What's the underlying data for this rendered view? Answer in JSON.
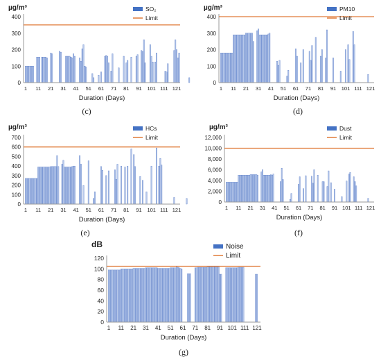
{
  "figure": {
    "captions": [
      "(c)",
      "(d)",
      "(e)",
      "(f)",
      "(g)"
    ]
  },
  "style": {
    "bar_fill": "#b8c9ea",
    "bar_edge": "#4f74c4",
    "legend_bar": "#4472c4",
    "limit_color": "#e07b39",
    "axis_color": "#9a9a9a"
  },
  "chart_data": [
    {
      "id": "c",
      "type": "bar",
      "ylabel": "µg/m³",
      "xlabel": "Duration (Days)",
      "ylim": [
        0,
        400
      ],
      "yticks": [
        0,
        100,
        200,
        300,
        400
      ],
      "xticks": [
        1,
        11,
        21,
        31,
        41,
        51,
        61,
        71,
        81,
        91,
        101,
        111,
        121
      ],
      "limit": 350,
      "series": [
        {
          "name": "SO₂",
          "values": [
            100,
            100,
            100,
            100,
            100,
            100,
            100,
            0,
            0,
            155,
            155,
            155,
            0,
            155,
            155,
            155,
            155,
            150,
            0,
            0,
            180,
            175,
            0,
            0,
            0,
            0,
            0,
            190,
            185,
            0,
            0,
            0,
            160,
            160,
            160,
            160,
            155,
            150,
            175,
            160,
            0,
            0,
            0,
            150,
            130,
            205,
            230,
            100,
            95,
            0,
            0,
            0,
            0,
            55,
            30,
            0,
            0,
            0,
            45,
            0,
            65,
            0,
            0,
            160,
            165,
            160,
            120,
            0,
            70,
            175,
            0,
            0,
            0,
            0,
            90,
            0,
            0,
            0,
            160,
            0,
            120,
            135,
            0,
            0,
            155,
            0,
            0,
            0,
            160,
            170,
            0,
            0,
            195,
            190,
            260,
            120,
            0,
            0,
            0,
            230,
            160,
            125,
            0,
            125,
            180,
            0,
            0,
            0,
            0,
            0,
            0,
            70,
            65,
            115,
            0,
            0,
            0,
            0,
            195,
            260,
            200,
            150,
            180,
            0,
            0,
            0,
            0,
            0,
            0,
            0,
            30
          ]
        },
        {
          "name": "Limit"
        }
      ]
    },
    {
      "id": "d",
      "type": "bar",
      "ylabel": "µg/m³",
      "xlabel": "Duration (Days)",
      "ylim": [
        0,
        400
      ],
      "yticks": [
        0,
        100,
        200,
        300,
        400
      ],
      "xticks": [
        1,
        11,
        21,
        31,
        41,
        51,
        61,
        71,
        81,
        91,
        101,
        111,
        121
      ],
      "limit": 400,
      "series": [
        {
          "name": "PM10",
          "values": [
            180,
            180,
            180,
            180,
            180,
            180,
            180,
            180,
            180,
            180,
            290,
            290,
            290,
            290,
            290,
            290,
            290,
            290,
            290,
            290,
            300,
            300,
            300,
            300,
            300,
            300,
            250,
            0,
            0,
            315,
            325,
            290,
            290,
            290,
            290,
            290,
            290,
            290,
            295,
            300,
            0,
            0,
            0,
            0,
            0,
            130,
            105,
            135,
            0,
            0,
            0,
            0,
            0,
            40,
            75,
            0,
            0,
            0,
            0,
            0,
            205,
            160,
            0,
            0,
            120,
            0,
            200,
            0,
            0,
            0,
            0,
            190,
            135,
            225,
            0,
            0,
            275,
            0,
            0,
            0,
            160,
            200,
            0,
            0,
            150,
            320,
            0,
            0,
            0,
            0,
            150,
            0,
            0,
            0,
            0,
            0,
            70,
            0,
            0,
            0,
            200,
            0,
            230,
            140,
            0,
            0,
            310,
            230,
            0,
            0,
            0,
            0,
            0,
            0,
            0,
            0,
            0,
            0,
            50,
            0,
            0,
            0,
            0,
            0,
            0,
            0,
            0,
            0
          ]
        },
        {
          "name": "Limit"
        }
      ]
    },
    {
      "id": "e",
      "type": "bar",
      "ylabel": "µg/m³",
      "xlabel": "Duration (Days)",
      "ylim": [
        0,
        700
      ],
      "yticks": [
        0,
        100,
        200,
        300,
        400,
        500,
        600,
        700
      ],
      "xticks": [
        1,
        11,
        21,
        31,
        41,
        51,
        61,
        71,
        81,
        91,
        101,
        111,
        121
      ],
      "limit": 600,
      "series": [
        {
          "name": "HCs",
          "values": [
            270,
            270,
            270,
            270,
            270,
            270,
            270,
            270,
            270,
            270,
            390,
            390,
            390,
            390,
            390,
            390,
            390,
            390,
            390,
            390,
            395,
            395,
            395,
            395,
            395,
            510,
            395,
            0,
            0,
            420,
            460,
            390,
            390,
            390,
            390,
            390,
            390,
            395,
            400,
            400,
            0,
            0,
            0,
            510,
            420,
            0,
            195,
            0,
            0,
            0,
            455,
            0,
            0,
            0,
            60,
            130,
            0,
            0,
            0,
            0,
            395,
            355,
            0,
            0,
            300,
            0,
            350,
            0,
            0,
            0,
            0,
            360,
            260,
            420,
            0,
            0,
            400,
            0,
            0,
            390,
            0,
            400,
            0,
            0,
            580,
            0,
            520,
            395,
            0,
            0,
            0,
            290,
            0,
            250,
            0,
            0,
            130,
            0,
            0,
            0,
            400,
            0,
            0,
            0,
            590,
            0,
            400,
            480,
            410,
            0,
            0,
            0,
            0,
            0,
            0,
            0,
            0,
            0,
            70,
            0,
            0,
            0,
            0,
            0,
            0,
            0,
            0,
            0,
            60
          ]
        },
        {
          "name": "Limit"
        }
      ]
    },
    {
      "id": "f",
      "type": "bar",
      "ylabel": "µg/m³",
      "xlabel": "Duration (Days)",
      "ylim": [
        0,
        12000
      ],
      "yticks": [
        0,
        2000,
        4000,
        6000,
        8000,
        10000,
        12000
      ],
      "ytick_labels": [
        "0",
        "2,000",
        "4,000",
        "6,000",
        "8,000",
        "10,000",
        "12,000"
      ],
      "xticks": [
        1,
        11,
        21,
        31,
        41,
        51,
        61,
        71,
        81,
        91,
        101,
        111,
        121
      ],
      "limit": 10000,
      "series": [
        {
          "name": "Dust",
          "values": [
            3700,
            3700,
            3700,
            3700,
            3700,
            3700,
            3700,
            3700,
            3700,
            3700,
            5000,
            5000,
            5000,
            5000,
            5000,
            5000,
            5000,
            5000,
            5000,
            5000,
            5100,
            5100,
            5100,
            5100,
            5100,
            5100,
            5000,
            0,
            0,
            5600,
            6000,
            5000,
            5000,
            5000,
            5000,
            5000,
            5000,
            5100,
            5000,
            5200,
            0,
            0,
            0,
            0,
            0,
            3800,
            6300,
            4200,
            0,
            0,
            0,
            0,
            0,
            500,
            1600,
            0,
            0,
            0,
            0,
            0,
            3300,
            4700,
            0,
            0,
            2500,
            0,
            4900,
            0,
            0,
            0,
            0,
            4800,
            3500,
            6000,
            0,
            0,
            5000,
            0,
            0,
            0,
            3800,
            3800,
            0,
            0,
            2900,
            5800,
            0,
            3600,
            0,
            0,
            2400,
            0,
            0,
            0,
            0,
            0,
            1000,
            0,
            0,
            0,
            3900,
            0,
            5200,
            5500,
            0,
            0,
            4700,
            3800,
            3000,
            0,
            0,
            0,
            0,
            0,
            0,
            0,
            0,
            0,
            700,
            0,
            0,
            0,
            0,
            0,
            0,
            0,
            0,
            0
          ]
        },
        {
          "name": "Limit"
        }
      ]
    },
    {
      "id": "g",
      "type": "bar",
      "ylabel": "dB",
      "xlabel": "Duration (Days)",
      "ylim": [
        0,
        120
      ],
      "yticks": [
        0,
        20,
        40,
        60,
        80,
        100,
        120
      ],
      "xticks": [
        1,
        11,
        21,
        31,
        41,
        51,
        61,
        71,
        81,
        91,
        101,
        111,
        121
      ],
      "limit": 105,
      "series": [
        {
          "name": "Noise",
          "values": [
            98,
            98,
            98,
            98,
            98,
            98,
            98,
            98,
            98,
            98,
            100,
            100,
            100,
            100,
            100,
            100,
            100,
            100,
            100,
            100,
            101,
            101,
            101,
            101,
            101,
            101,
            101,
            101,
            101,
            101,
            102,
            102,
            102,
            102,
            102,
            102,
            102,
            102,
            102,
            102,
            101,
            101,
            101,
            101,
            101,
            101,
            101,
            101,
            101,
            101,
            102,
            102,
            102,
            102,
            102,
            104,
            103,
            102,
            101,
            100,
            0,
            0,
            0,
            0,
            91,
            91,
            91,
            0,
            0,
            0,
            102,
            102,
            103,
            103,
            103,
            103,
            103,
            103,
            103,
            103,
            104,
            104,
            104,
            104,
            104,
            104,
            104,
            104,
            104,
            104,
            90,
            90,
            0,
            0,
            0,
            102,
            102,
            102,
            102,
            102,
            102,
            102,
            102,
            102,
            102,
            103,
            103,
            103,
            103,
            103,
            0,
            0,
            0,
            0,
            0,
            0,
            0,
            0,
            0,
            90,
            90
          ]
        },
        {
          "name": "Limit"
        }
      ]
    }
  ]
}
